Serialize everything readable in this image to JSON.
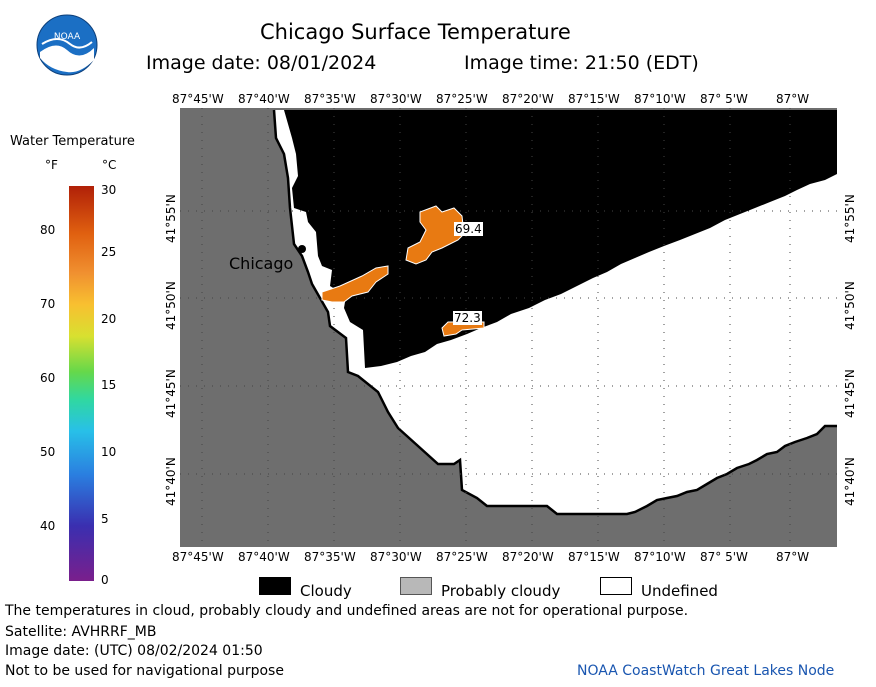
{
  "header": {
    "title": "Chicago Surface Temperature",
    "image_date": "Image date: 08/01/2024",
    "image_time": "Image time: 21:50 (EDT)"
  },
  "logo": {
    "text": "NOAA",
    "color": "#0a5fb4"
  },
  "colorbar": {
    "title": "Water Temperature",
    "unit_f": "°F",
    "unit_c": "°C",
    "f_ticks": [
      "80",
      "70",
      "60",
      "50",
      "40"
    ],
    "c_ticks": [
      "30",
      "25",
      "20",
      "15",
      "10",
      "5",
      "0"
    ]
  },
  "map": {
    "lon_labels": [
      "87°45'W",
      "87°40'W",
      "87°35'W",
      "87°30'W",
      "87°25'W",
      "87°20'W",
      "87°15'W",
      "87°10'W",
      "87° 5'W",
      "87°W"
    ],
    "lat_labels": [
      "41°55'N",
      "41°50'N",
      "41°45'N",
      "41°40'N"
    ],
    "city": "Chicago",
    "readings": [
      "69.4",
      "72.3"
    ],
    "colors": {
      "land": "#6e6e6e",
      "cloudy": "#000000",
      "undefined": "#ffffff",
      "warm": "#e87a12"
    }
  },
  "legend": {
    "cloudy": "Cloudy",
    "probably_cloudy": "Probably cloudy",
    "undefined": "Undefined"
  },
  "footer": {
    "disclaimer": "The temperatures in cloud, probably cloudy and undefined areas are not for operational purpose.",
    "satellite": "Satellite: AVHRRF_MB",
    "utc_date": "Image date: (UTC) 08/02/2024  01:50",
    "nav_warning": "Not to be used for navigational purpose",
    "credit": "NOAA CoastWatch Great Lakes Node"
  }
}
